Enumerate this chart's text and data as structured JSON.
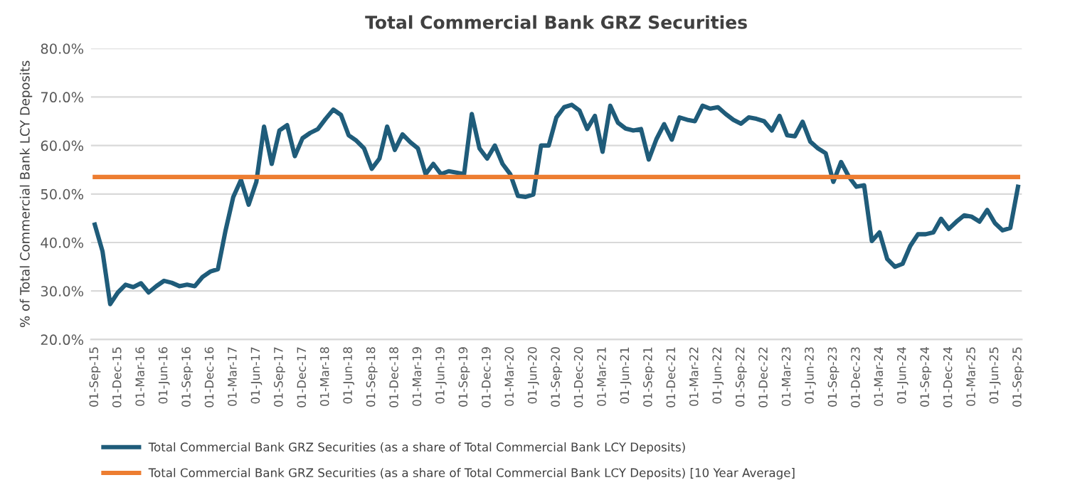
{
  "chart_data": {
    "type": "line",
    "title": "Total Commercial Bank GRZ Securities",
    "ylabel": "% of Total Commercial Bank LCY Deposits",
    "categories": [
      "01-Sep-15",
      null,
      null,
      "01-Dec-15",
      null,
      null,
      "01-Mar-16",
      null,
      null,
      "01-Jun-16",
      null,
      null,
      "01-Sep-16",
      null,
      null,
      "01-Dec-16",
      null,
      null,
      "01-Mar-17",
      null,
      null,
      "01-Jun-17",
      null,
      null,
      "01-Sep-17",
      null,
      null,
      "01-Dec-17",
      null,
      null,
      "01-Mar-18",
      null,
      null,
      "01-Jun-18",
      null,
      null,
      "01-Sep-18",
      null,
      null,
      "01-Dec-18",
      null,
      null,
      "01-Mar-19",
      null,
      null,
      "01-Jun-19",
      null,
      null,
      "01-Sep-19",
      null,
      null,
      "01-Dec-19",
      null,
      null,
      "01-Mar-20",
      null,
      null,
      "01-Jun-20",
      null,
      null,
      "01-Sep-20",
      null,
      null,
      "01-Dec-20",
      null,
      null,
      "01-Mar-21",
      null,
      null,
      "01-Jun-21",
      null,
      null,
      "01-Sep-21",
      null,
      null,
      "01-Dec-21",
      null,
      null,
      "01-Mar-22",
      null,
      null,
      "01-Jun-22",
      null,
      null,
      "01-Sep-22",
      null,
      null,
      "01-Dec-22",
      null,
      null,
      "01-Mar-23",
      null,
      null,
      "01-Jun-23",
      null,
      null,
      "01-Sep-23",
      null,
      null,
      "01-Dec-23",
      null,
      null,
      "01-Mar-24",
      null,
      null,
      "01-Jun-24",
      null,
      null,
      "01-Sep-24",
      null,
      null,
      "01-Dec-24",
      null,
      null,
      "01-Mar-25",
      null,
      null,
      "01-Jun-25",
      null,
      null,
      "01-Sep-25"
    ],
    "series": [
      {
        "name": "Total Commercial Bank GRZ Securities (as a share of Total Commercial Bank LCY Deposits)",
        "color": "#1f5c7a",
        "values": [
          43.7,
          38.2,
          27.3,
          29.7,
          31.3,
          30.8,
          31.6,
          29.7,
          31.0,
          32.1,
          31.7,
          31.0,
          31.3,
          31.0,
          32.9,
          34.0,
          34.5,
          42.5,
          49.4,
          52.9,
          47.8,
          52.5,
          63.9,
          56.2,
          63.1,
          64.2,
          57.8,
          61.5,
          62.6,
          63.4,
          65.5,
          67.4,
          66.3,
          62.1,
          61.0,
          59.4,
          55.2,
          57.3,
          63.9,
          59.1,
          62.3,
          60.7,
          59.4,
          54.1,
          56.2,
          54.1,
          54.7,
          54.4,
          54.1,
          66.5,
          59.4,
          57.3,
          60.0,
          56.2,
          54.1,
          49.6,
          49.4,
          49.9,
          60.0,
          60.0,
          65.8,
          67.9,
          68.4,
          67.2,
          63.4,
          66.1,
          58.7,
          68.2,
          64.7,
          63.5,
          63.1,
          63.4,
          57.1,
          61.3,
          64.4,
          61.2,
          65.8,
          65.3,
          65.0,
          68.2,
          67.6,
          67.9,
          66.5,
          65.3,
          64.5,
          65.8,
          65.5,
          65.0,
          63.1,
          66.1,
          62.1,
          61.9,
          64.9,
          60.8,
          59.4,
          58.4,
          52.5,
          56.6,
          53.6,
          51.5,
          51.8,
          40.3,
          42.1,
          36.6,
          35.0,
          35.6,
          39.3,
          41.7,
          41.7,
          42.1,
          44.9,
          42.8,
          44.3,
          45.6,
          45.3,
          44.3,
          46.7,
          44.0,
          42.5,
          43.0,
          51.5
        ]
      },
      {
        "name": "Total Commercial Bank GRZ Securities (as a share of Total Commercial Bank LCY Deposits) [10 Year Average]",
        "color": "#ed7d31",
        "values": [
          53.5,
          53.5,
          53.5,
          53.5,
          53.5,
          53.5,
          53.5,
          53.5,
          53.5,
          53.5,
          53.5,
          53.5,
          53.5,
          53.5,
          53.5,
          53.5,
          53.5,
          53.5,
          53.5,
          53.5,
          53.5,
          53.5,
          53.5,
          53.5,
          53.5,
          53.5,
          53.5,
          53.5,
          53.5,
          53.5,
          53.5,
          53.5,
          53.5,
          53.5,
          53.5,
          53.5,
          53.5,
          53.5,
          53.5,
          53.5,
          53.5,
          53.5,
          53.5,
          53.5,
          53.5,
          53.5,
          53.5,
          53.5,
          53.5,
          53.5,
          53.5,
          53.5,
          53.5,
          53.5,
          53.5,
          53.5,
          53.5,
          53.5,
          53.5,
          53.5,
          53.5,
          53.5,
          53.5,
          53.5,
          53.5,
          53.5,
          53.5,
          53.5,
          53.5,
          53.5,
          53.5,
          53.5,
          53.5,
          53.5,
          53.5,
          53.5,
          53.5,
          53.5,
          53.5,
          53.5,
          53.5,
          53.5,
          53.5,
          53.5,
          53.5,
          53.5,
          53.5,
          53.5,
          53.5,
          53.5,
          53.5,
          53.5,
          53.5,
          53.5,
          53.5,
          53.5,
          53.5,
          53.5,
          53.5,
          53.5,
          53.5,
          53.5,
          53.5,
          53.5,
          53.5,
          53.5,
          53.5,
          53.5,
          53.5,
          53.5,
          53.5,
          53.5,
          53.5,
          53.5,
          53.5,
          53.5,
          53.5,
          53.5,
          53.5,
          53.5,
          53.5
        ]
      }
    ],
    "ylim": [
      20,
      80
    ],
    "yticks": [
      {
        "value": 20,
        "label": "20.0%"
      },
      {
        "value": 30,
        "label": "30.0%"
      },
      {
        "value": 40,
        "label": "40.0%"
      },
      {
        "value": 50,
        "label": "50.0%"
      },
      {
        "value": 60,
        "label": "60.0%"
      },
      {
        "value": 70,
        "label": "70.0%"
      },
      {
        "value": 80,
        "label": "80.0%"
      }
    ],
    "grid": "y",
    "legend": "bottom",
    "marker": "none",
    "line_style": "solid"
  }
}
